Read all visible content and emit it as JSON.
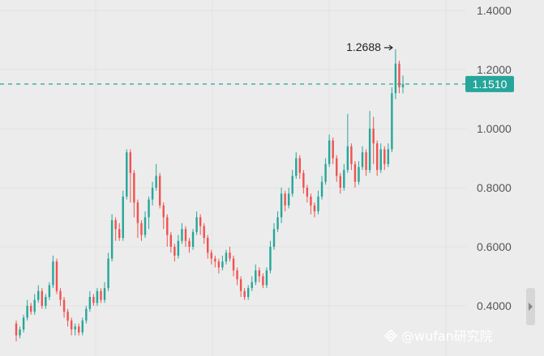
{
  "chart_data": {
    "type": "candlestick",
    "y_ticks": [
      "1.4000",
      "1.2000",
      "1.0000",
      "0.8000",
      "0.6000",
      "0.4000"
    ],
    "ylim": [
      0.35,
      1.43
    ],
    "current_price": "1.1510",
    "current_price_value": 1.151,
    "peak_label": "1.2688",
    "peak_value": 1.2688,
    "up_color": "#26a69a",
    "down_color": "#ef5350",
    "last_price_color": "#26a69a",
    "bars": [
      [
        0.34,
        0.3,
        0.35,
        0.28
      ],
      [
        0.3,
        0.32,
        0.33,
        0.29
      ],
      [
        0.32,
        0.36,
        0.37,
        0.31
      ],
      [
        0.36,
        0.4,
        0.42,
        0.35
      ],
      [
        0.4,
        0.38,
        0.41,
        0.37
      ],
      [
        0.38,
        0.42,
        0.44,
        0.37
      ],
      [
        0.42,
        0.45,
        0.47,
        0.41
      ],
      [
        0.45,
        0.4,
        0.46,
        0.39
      ],
      [
        0.4,
        0.43,
        0.44,
        0.39
      ],
      [
        0.43,
        0.47,
        0.48,
        0.42
      ],
      [
        0.47,
        0.55,
        0.57,
        0.46
      ],
      [
        0.55,
        0.45,
        0.56,
        0.44
      ],
      [
        0.45,
        0.42,
        0.46,
        0.4
      ],
      [
        0.42,
        0.38,
        0.43,
        0.36
      ],
      [
        0.38,
        0.35,
        0.39,
        0.33
      ],
      [
        0.35,
        0.32,
        0.36,
        0.3
      ],
      [
        0.32,
        0.33,
        0.34,
        0.3
      ],
      [
        0.33,
        0.31,
        0.34,
        0.3
      ],
      [
        0.31,
        0.35,
        0.36,
        0.3
      ],
      [
        0.35,
        0.39,
        0.4,
        0.34
      ],
      [
        0.39,
        0.43,
        0.45,
        0.38
      ],
      [
        0.43,
        0.41,
        0.44,
        0.4
      ],
      [
        0.41,
        0.45,
        0.46,
        0.4
      ],
      [
        0.45,
        0.42,
        0.46,
        0.41
      ],
      [
        0.42,
        0.46,
        0.48,
        0.41
      ],
      [
        0.46,
        0.56,
        0.58,
        0.45
      ],
      [
        0.56,
        0.69,
        0.71,
        0.55
      ],
      [
        0.69,
        0.66,
        0.7,
        0.62
      ],
      [
        0.66,
        0.63,
        0.68,
        0.62
      ],
      [
        0.63,
        0.77,
        0.79,
        0.62
      ],
      [
        0.77,
        0.92,
        0.93,
        0.76
      ],
      [
        0.92,
        0.85,
        0.93,
        0.75
      ],
      [
        0.85,
        0.75,
        0.86,
        0.7
      ],
      [
        0.75,
        0.68,
        0.76,
        0.63
      ],
      [
        0.68,
        0.64,
        0.69,
        0.62
      ],
      [
        0.64,
        0.7,
        0.72,
        0.63
      ],
      [
        0.7,
        0.76,
        0.77,
        0.66
      ],
      [
        0.76,
        0.8,
        0.82,
        0.74
      ],
      [
        0.8,
        0.84,
        0.88,
        0.79
      ],
      [
        0.84,
        0.74,
        0.85,
        0.73
      ],
      [
        0.74,
        0.7,
        0.75,
        0.66
      ],
      [
        0.7,
        0.64,
        0.71,
        0.6
      ],
      [
        0.64,
        0.6,
        0.65,
        0.58
      ],
      [
        0.6,
        0.57,
        0.61,
        0.55
      ],
      [
        0.57,
        0.62,
        0.64,
        0.56
      ],
      [
        0.62,
        0.66,
        0.68,
        0.61
      ],
      [
        0.66,
        0.62,
        0.67,
        0.6
      ],
      [
        0.62,
        0.6,
        0.63,
        0.58
      ],
      [
        0.6,
        0.65,
        0.66,
        0.59
      ],
      [
        0.65,
        0.7,
        0.72,
        0.64
      ],
      [
        0.7,
        0.67,
        0.71,
        0.64
      ],
      [
        0.67,
        0.63,
        0.68,
        0.61
      ],
      [
        0.63,
        0.58,
        0.64,
        0.56
      ],
      [
        0.58,
        0.56,
        0.59,
        0.54
      ],
      [
        0.56,
        0.55,
        0.57,
        0.53
      ],
      [
        0.55,
        0.53,
        0.56,
        0.51
      ],
      [
        0.53,
        0.55,
        0.57,
        0.52
      ],
      [
        0.55,
        0.58,
        0.59,
        0.54
      ],
      [
        0.58,
        0.56,
        0.6,
        0.55
      ],
      [
        0.56,
        0.52,
        0.57,
        0.5
      ],
      [
        0.52,
        0.49,
        0.53,
        0.47
      ],
      [
        0.49,
        0.45,
        0.5,
        0.43
      ],
      [
        0.45,
        0.43,
        0.46,
        0.42
      ],
      [
        0.43,
        0.46,
        0.47,
        0.42
      ],
      [
        0.46,
        0.48,
        0.5,
        0.45
      ],
      [
        0.48,
        0.52,
        0.54,
        0.47
      ],
      [
        0.52,
        0.5,
        0.53,
        0.48
      ],
      [
        0.5,
        0.47,
        0.51,
        0.46
      ],
      [
        0.47,
        0.52,
        0.53,
        0.46
      ],
      [
        0.52,
        0.6,
        0.62,
        0.51
      ],
      [
        0.6,
        0.66,
        0.68,
        0.59
      ],
      [
        0.66,
        0.7,
        0.72,
        0.65
      ],
      [
        0.7,
        0.78,
        0.8,
        0.68
      ],
      [
        0.78,
        0.74,
        0.79,
        0.72
      ],
      [
        0.74,
        0.78,
        0.8,
        0.73
      ],
      [
        0.78,
        0.84,
        0.86,
        0.77
      ],
      [
        0.84,
        0.9,
        0.92,
        0.83
      ],
      [
        0.9,
        0.85,
        0.91,
        0.83
      ],
      [
        0.85,
        0.8,
        0.86,
        0.78
      ],
      [
        0.8,
        0.77,
        0.81,
        0.75
      ],
      [
        0.77,
        0.74,
        0.78,
        0.71
      ],
      [
        0.74,
        0.72,
        0.75,
        0.7
      ],
      [
        0.72,
        0.77,
        0.79,
        0.71
      ],
      [
        0.77,
        0.82,
        0.84,
        0.76
      ],
      [
        0.82,
        0.88,
        0.9,
        0.81
      ],
      [
        0.88,
        0.96,
        0.98,
        0.87
      ],
      [
        0.96,
        0.9,
        0.97,
        0.88
      ],
      [
        0.9,
        0.84,
        0.91,
        0.82
      ],
      [
        0.84,
        0.8,
        0.85,
        0.78
      ],
      [
        0.8,
        0.86,
        0.88,
        0.79
      ],
      [
        0.86,
        0.94,
        1.05,
        0.85
      ],
      [
        0.94,
        0.88,
        0.95,
        0.86
      ],
      [
        0.88,
        0.82,
        0.89,
        0.8
      ],
      [
        0.82,
        0.87,
        0.89,
        0.81
      ],
      [
        0.87,
        0.92,
        0.94,
        0.86
      ],
      [
        0.92,
        0.86,
        0.93,
        0.84
      ],
      [
        0.86,
        1.0,
        1.06,
        0.85
      ],
      [
        1.0,
        0.95,
        1.04,
        0.88
      ],
      [
        0.95,
        0.86,
        0.96,
        0.84
      ],
      [
        0.86,
        0.93,
        0.95,
        0.85
      ],
      [
        0.93,
        0.88,
        0.94,
        0.86
      ],
      [
        0.88,
        0.93,
        0.95,
        0.87
      ],
      [
        0.93,
        1.12,
        1.14,
        0.92
      ],
      [
        1.12,
        1.22,
        1.2688,
        1.1
      ],
      [
        1.22,
        1.14,
        1.23,
        1.12
      ],
      [
        1.14,
        1.151,
        1.18,
        1.12
      ]
    ]
  },
  "watermark": "@wufan研究院"
}
